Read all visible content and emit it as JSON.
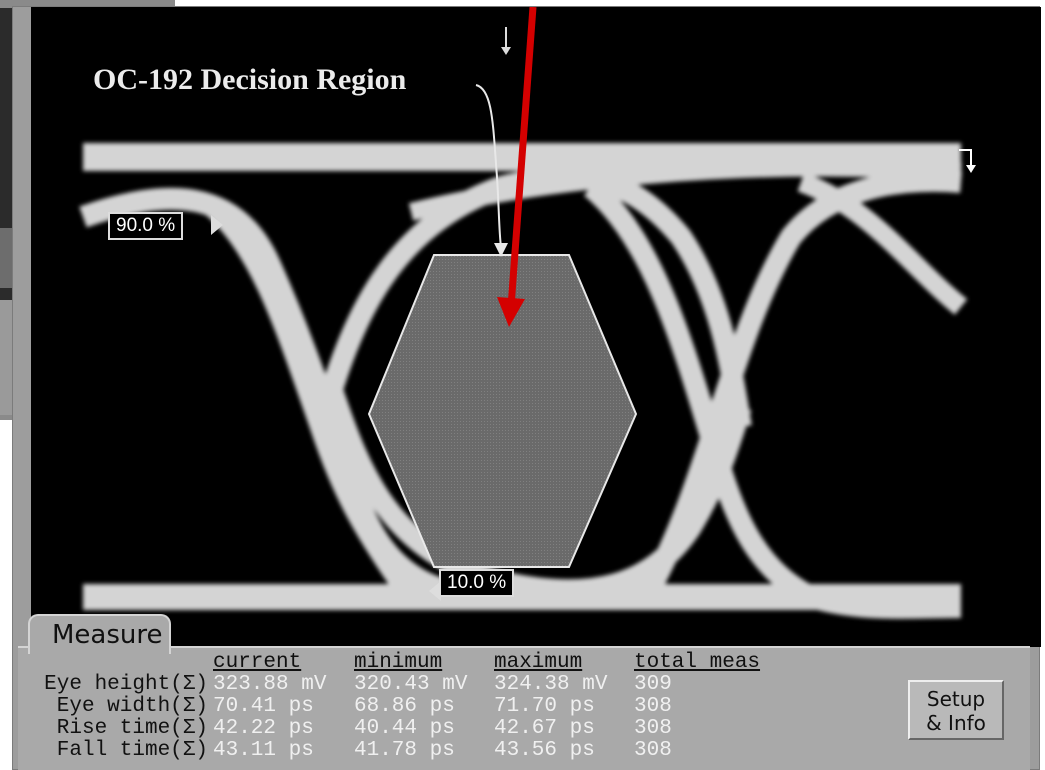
{
  "callout": {
    "label": "OC-192 Decision Region"
  },
  "markers": {
    "upper": "90.0 %",
    "lower": "10.0 %"
  },
  "measure": {
    "tab_label": "Measure",
    "headers": [
      "current",
      "minimum",
      "maximum",
      "total meas"
    ],
    "rows": [
      {
        "label": "Eye height(Σ)",
        "current": "323.88 mV",
        "minimum": "320.43 mV",
        "maximum": "324.38 mV",
        "total": "309"
      },
      {
        "label": "Eye width(Σ)",
        "current": "70.41 ps",
        "minimum": "68.86 ps",
        "maximum": "71.70 ps",
        "total": "308"
      },
      {
        "label": "Rise time(Σ)",
        "current": "42.22 ps",
        "minimum": "40.44 ps",
        "maximum": "42.67 ps",
        "total": "308"
      },
      {
        "label": "Fall time(Σ)",
        "current": "43.11 ps",
        "minimum": "41.78 ps",
        "maximum": "43.56 ps",
        "total": "308"
      }
    ]
  },
  "setup_button": {
    "line1": "Setup",
    "line2": "& Info"
  },
  "colors": {
    "screen": "#000000",
    "trace": "#d8d8d8",
    "mask": "#6e6e6e",
    "panel": "#a9a9a9",
    "pointer": "#d40000"
  }
}
